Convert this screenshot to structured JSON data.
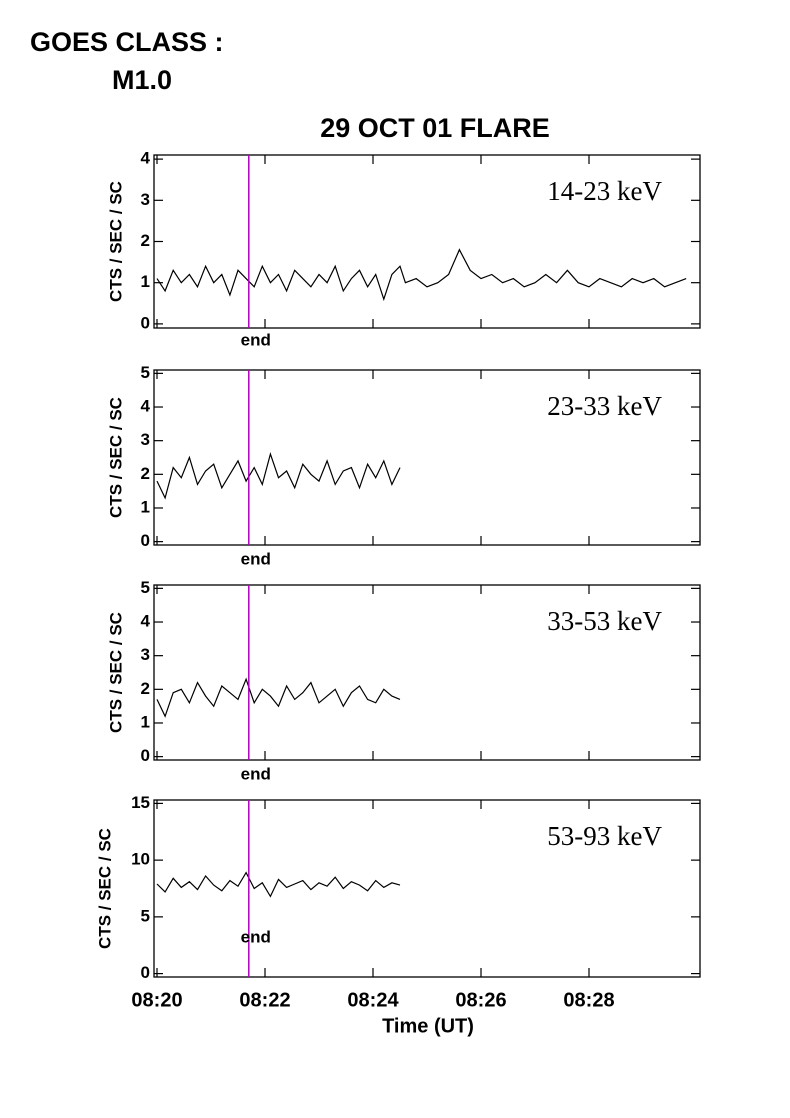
{
  "goes_label": "GOES CLASS :",
  "goes_class": "M1.0",
  "chart_data": [
    {
      "type": "line",
      "title": "29 OCT 01 FLARE",
      "label": "14-23 keV",
      "ylabel": "CTS / SEC / SC",
      "xlim": [
        20,
        30
      ],
      "xticks": [
        20,
        22,
        24,
        26,
        28
      ],
      "ylim": [
        -0.1,
        4.1
      ],
      "yticks": [
        0,
        1,
        2,
        3,
        4
      ],
      "annotations": [
        {
          "text": "end",
          "x": 21.7,
          "color": "#b000c0"
        }
      ],
      "series": [
        {
          "color": "#000000",
          "x": [
            20,
            20.15,
            20.3,
            20.45,
            20.6,
            20.75,
            20.9,
            21.05,
            21.2,
            21.35,
            21.5,
            21.65,
            21.8,
            21.95,
            22.1,
            22.25,
            22.4,
            22.55,
            22.7,
            22.85,
            23,
            23.15,
            23.3,
            23.45,
            23.6,
            23.75,
            23.9,
            24.05,
            24.2,
            24.35,
            24.5,
            24.6,
            24.8,
            25,
            25.2,
            25.4,
            25.6,
            25.8,
            26,
            26.2,
            26.4,
            26.6,
            26.8,
            27,
            27.2,
            27.4,
            27.6,
            27.8,
            28,
            28.2,
            28.4,
            28.6,
            28.8,
            29,
            29.2,
            29.4,
            29.6,
            29.8
          ],
          "values": [
            1.1,
            0.8,
            1.3,
            1.0,
            1.2,
            0.9,
            1.4,
            1.0,
            1.2,
            0.7,
            1.3,
            1.1,
            0.9,
            1.4,
            1.0,
            1.2,
            0.8,
            1.3,
            1.1,
            0.9,
            1.2,
            1.0,
            1.4,
            0.8,
            1.1,
            1.3,
            0.9,
            1.2,
            0.6,
            1.2,
            1.4,
            1.0,
            1.1,
            0.9,
            1.0,
            1.2,
            1.8,
            1.3,
            1.1,
            1.2,
            1.0,
            1.1,
            0.9,
            1.0,
            1.2,
            1.0,
            1.3,
            1.0,
            0.9,
            1.1,
            1.0,
            0.9,
            1.1,
            1.0,
            1.1,
            0.9,
            1.0,
            1.1
          ]
        }
      ]
    },
    {
      "type": "line",
      "label": "23-33 keV",
      "ylabel": "CTS / SEC / SC",
      "xlim": [
        20,
        30
      ],
      "xticks": [
        20,
        22,
        24,
        26,
        28
      ],
      "ylim": [
        -0.1,
        5.1
      ],
      "yticks": [
        0,
        1,
        2,
        3,
        4,
        5
      ],
      "annotations": [
        {
          "text": "end",
          "x": 21.7,
          "color": "#b000c0"
        }
      ],
      "series": [
        {
          "color": "#000000",
          "x": [
            20,
            20.15,
            20.3,
            20.45,
            20.6,
            20.75,
            20.9,
            21.05,
            21.2,
            21.35,
            21.5,
            21.65,
            21.8,
            21.95,
            22.1,
            22.25,
            22.4,
            22.55,
            22.7,
            22.85,
            23,
            23.15,
            23.3,
            23.45,
            23.6,
            23.75,
            23.9,
            24.05,
            24.2,
            24.35,
            24.5
          ],
          "values": [
            1.8,
            1.3,
            2.2,
            1.9,
            2.5,
            1.7,
            2.1,
            2.3,
            1.6,
            2.0,
            2.4,
            1.8,
            2.2,
            1.7,
            2.6,
            1.9,
            2.1,
            1.6,
            2.3,
            2.0,
            1.8,
            2.4,
            1.7,
            2.1,
            2.2,
            1.6,
            2.3,
            1.9,
            2.4,
            1.7,
            2.2
          ]
        }
      ]
    },
    {
      "type": "line",
      "label": "33-53 keV",
      "ylabel": "CTS / SEC / SC",
      "xlim": [
        20,
        30
      ],
      "xticks": [
        20,
        22,
        24,
        26,
        28
      ],
      "ylim": [
        -0.1,
        5.1
      ],
      "yticks": [
        0,
        1,
        2,
        3,
        4,
        5
      ],
      "annotations": [
        {
          "text": "end",
          "x": 21.7,
          "color": "#b000c0"
        }
      ],
      "series": [
        {
          "color": "#000000",
          "x": [
            20,
            20.15,
            20.3,
            20.45,
            20.6,
            20.75,
            20.9,
            21.05,
            21.2,
            21.35,
            21.5,
            21.65,
            21.8,
            21.95,
            22.1,
            22.25,
            22.4,
            22.55,
            22.7,
            22.85,
            23,
            23.15,
            23.3,
            23.45,
            23.6,
            23.75,
            23.9,
            24.05,
            24.2,
            24.35,
            24.5
          ],
          "values": [
            1.7,
            1.2,
            1.9,
            2.0,
            1.6,
            2.2,
            1.8,
            1.5,
            2.1,
            1.9,
            1.7,
            2.3,
            1.6,
            2.0,
            1.8,
            1.5,
            2.1,
            1.7,
            1.9,
            2.2,
            1.6,
            1.8,
            2.0,
            1.5,
            1.9,
            2.1,
            1.7,
            1.6,
            2.0,
            1.8,
            1.7
          ]
        }
      ]
    },
    {
      "type": "line",
      "label": "53-93 keV",
      "ylabel": "CTS / SEC / SC",
      "xlabel": "Time (UT)",
      "xlim": [
        20,
        30
      ],
      "xticks": [
        {
          "value": 20,
          "label": "08:20"
        },
        {
          "value": 22,
          "label": "08:22"
        },
        {
          "value": 24,
          "label": "08:24"
        },
        {
          "value": 26,
          "label": "08:26"
        },
        {
          "value": 28,
          "label": "08:28"
        }
      ],
      "ylim": [
        -0.3,
        15.3
      ],
      "yticks": [
        0,
        5,
        10,
        15
      ],
      "annotations": [
        {
          "text": "end",
          "x": 21.7,
          "color": "#b000c0"
        }
      ],
      "series": [
        {
          "color": "#000000",
          "x": [
            20,
            20.15,
            20.3,
            20.45,
            20.6,
            20.75,
            20.9,
            21.05,
            21.2,
            21.35,
            21.5,
            21.65,
            21.8,
            21.95,
            22.1,
            22.25,
            22.4,
            22.55,
            22.7,
            22.85,
            23,
            23.15,
            23.3,
            23.45,
            23.6,
            23.75,
            23.9,
            24.05,
            24.2,
            24.35,
            24.5
          ],
          "values": [
            7.9,
            7.2,
            8.4,
            7.6,
            8.1,
            7.4,
            8.6,
            7.8,
            7.3,
            8.2,
            7.7,
            8.9,
            7.5,
            8.0,
            6.8,
            8.3,
            7.6,
            7.9,
            8.2,
            7.4,
            8.0,
            7.7,
            8.5,
            7.5,
            8.1,
            7.8,
            7.3,
            8.2,
            7.6,
            8.0,
            7.8
          ]
        }
      ]
    }
  ]
}
